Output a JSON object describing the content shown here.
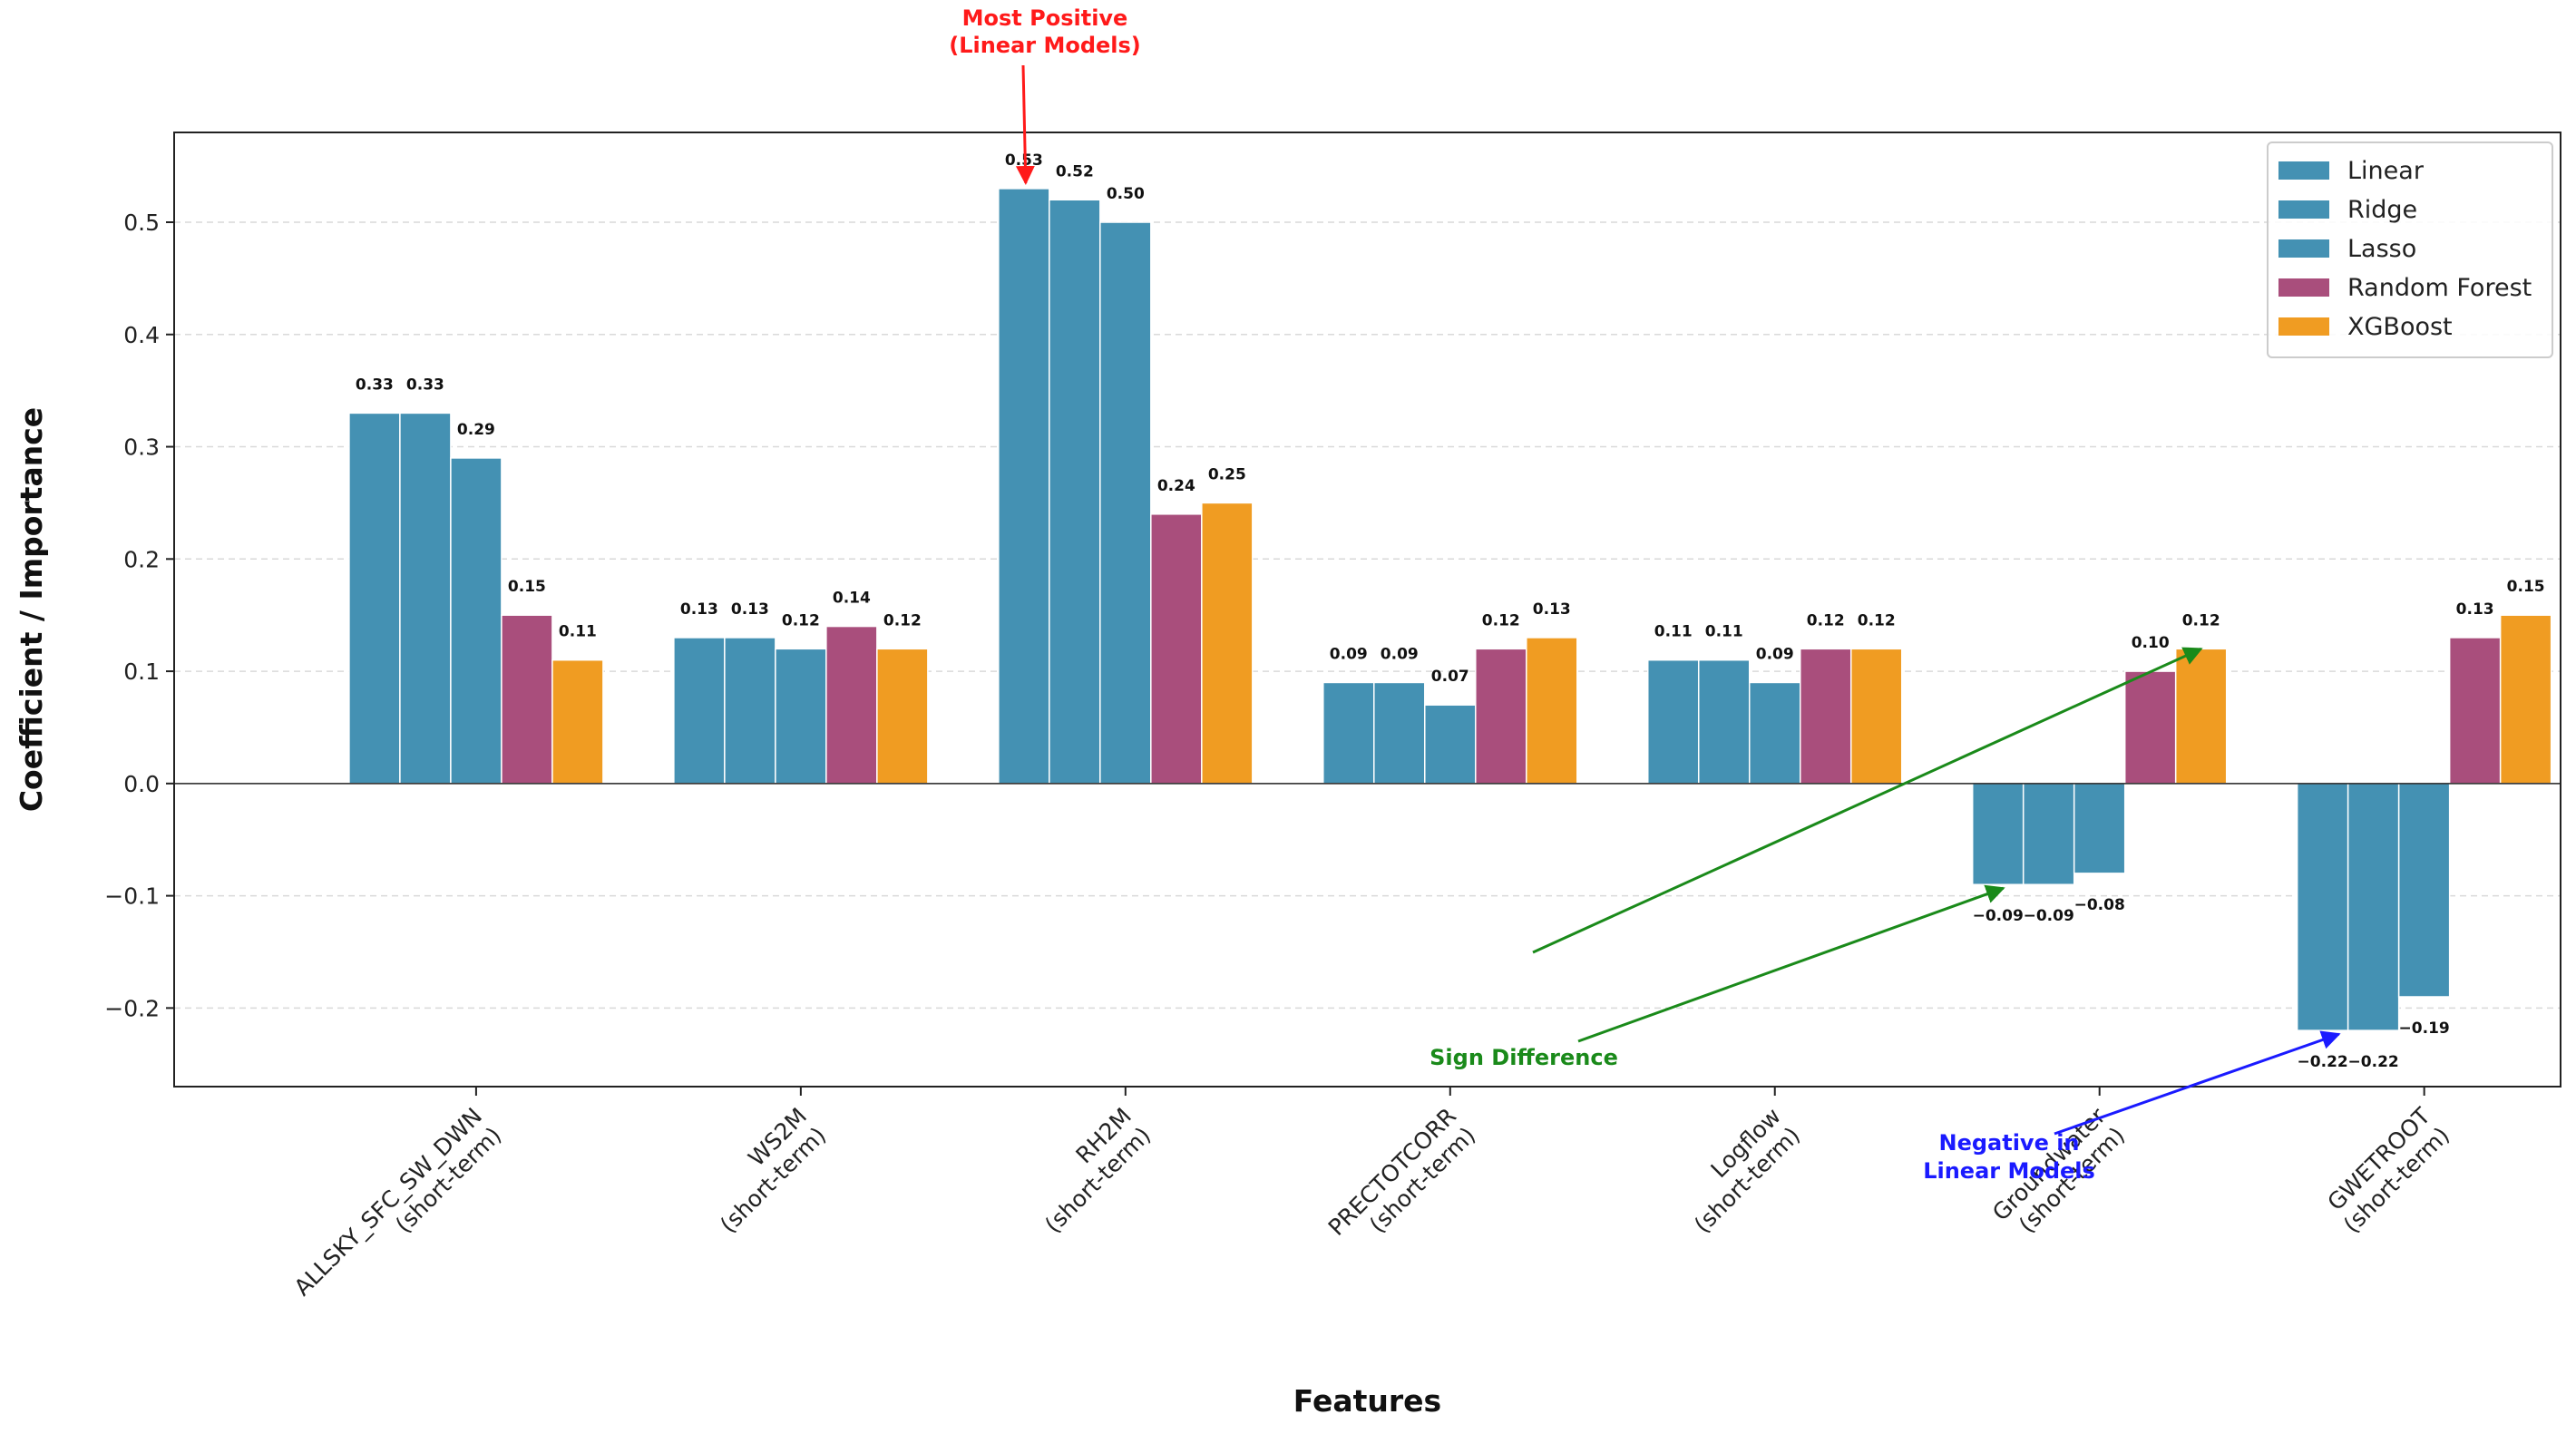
{
  "chart_data": {
    "type": "bar",
    "title": "",
    "xlabel": "Features",
    "ylabel": "Coefficient / Importance",
    "ylim": [
      -0.27,
      0.58
    ],
    "yticks": [
      -0.2,
      -0.1,
      0.0,
      0.1,
      0.2,
      0.3,
      0.4,
      0.5
    ],
    "ytick_labels": [
      "−0.2",
      "−0.1",
      "0.0",
      "0.1",
      "0.2",
      "0.3",
      "0.4",
      "0.5"
    ],
    "grid": true,
    "legend_position": "top-right",
    "categories": [
      [
        "ALLSKY_SFC_SW_DWN",
        "(short-term)"
      ],
      [
        "WS2M",
        "(short-term)"
      ],
      [
        "RH2M",
        "(short-term)"
      ],
      [
        "PRECTOTCORR",
        "(short-term)"
      ],
      [
        "Logflow",
        "(short-term)"
      ],
      [
        "Groundwater",
        "(short-term)"
      ],
      [
        "GWETROOT",
        "(short-term)"
      ]
    ],
    "series": [
      {
        "name": "Linear",
        "color": "#4491b3",
        "values": [
          0.33,
          0.13,
          0.53,
          0.09,
          0.11,
          -0.09,
          -0.22
        ],
        "labels": [
          "0.33",
          "0.13",
          "0.53",
          "0.09",
          "0.11",
          "−0.09",
          "−0.22"
        ]
      },
      {
        "name": "Ridge",
        "color": "#4491b3",
        "values": [
          0.33,
          0.13,
          0.52,
          0.09,
          0.11,
          -0.09,
          -0.22
        ],
        "labels": [
          "0.33",
          "0.13",
          "0.52",
          "0.09",
          "0.11",
          "−0.09",
          "−0.22"
        ]
      },
      {
        "name": "Lasso",
        "color": "#4491b3",
        "values": [
          0.29,
          0.12,
          0.5,
          0.07,
          0.09,
          -0.08,
          -0.19
        ],
        "labels": [
          "0.29",
          "0.12",
          "0.50",
          "0.07",
          "0.09",
          "−0.08",
          "−0.19"
        ]
      },
      {
        "name": "Random Forest",
        "color": "#a94e7c",
        "values": [
          0.15,
          0.14,
          0.24,
          0.12,
          0.12,
          0.1,
          0.13
        ],
        "labels": [
          "0.15",
          "0.14",
          "0.24",
          "0.12",
          "0.12",
          "0.10",
          "0.13"
        ]
      },
      {
        "name": "XGBoost",
        "color": "#f09c22",
        "values": [
          0.11,
          0.12,
          0.25,
          0.13,
          0.12,
          0.12,
          0.15
        ],
        "labels": [
          "0.11",
          "0.12",
          "0.25",
          "0.13",
          "0.12",
          "0.12",
          "0.15"
        ]
      }
    ],
    "annotations": [
      {
        "id": "most-positive",
        "lines": [
          "Most Positive",
          "(Linear Models)"
        ],
        "color": "#ff1a1a"
      },
      {
        "id": "sign-difference",
        "lines": [
          "Sign Difference"
        ],
        "color": "#1a8a1a"
      },
      {
        "id": "negative-linear",
        "lines": [
          "Negative in",
          "Linear Models"
        ],
        "color": "#1a1aff"
      }
    ]
  }
}
